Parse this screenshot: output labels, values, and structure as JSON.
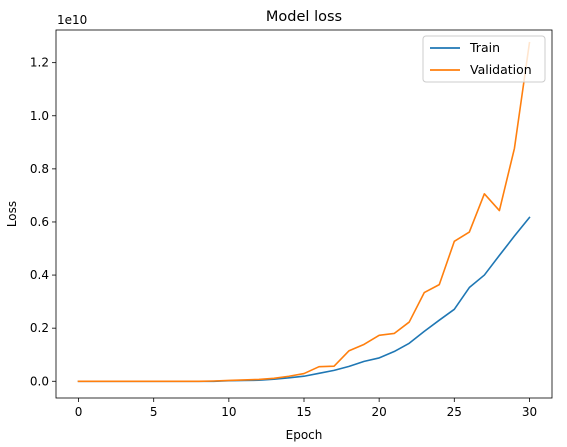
{
  "chart_data": {
    "type": "line",
    "title": "Model loss",
    "xlabel": "Epoch",
    "ylabel": "Loss",
    "y_multiplier_label": "1e10",
    "y_scale": 10000000000,
    "xlim": [
      -1.5,
      31.5
    ],
    "ylim": [
      -0.063,
      1.323
    ],
    "xticks": [
      0,
      5,
      10,
      15,
      20,
      25,
      30
    ],
    "yticks": [
      0.0,
      0.2,
      0.4,
      0.6,
      0.8,
      1.0,
      1.2
    ],
    "ytick_labels": [
      "0.0",
      "0.2",
      "0.4",
      "0.6",
      "0.8",
      "1.0",
      "1.2"
    ],
    "grid": false,
    "legend_position": "upper right",
    "x": [
      0,
      1,
      2,
      3,
      4,
      5,
      6,
      7,
      8,
      9,
      10,
      11,
      12,
      13,
      14,
      15,
      16,
      17,
      18,
      19,
      20,
      21,
      22,
      23,
      24,
      25,
      26,
      27,
      28,
      29,
      30
    ],
    "series": [
      {
        "name": "Train",
        "color": "#1f77b4",
        "values": [
          0.0,
          0.0,
          0.0,
          0.0,
          0.0,
          0.0,
          0.0,
          0.0,
          0.0,
          0.0,
          0.002,
          0.003,
          0.004,
          0.008,
          0.013,
          0.019,
          0.03,
          0.041,
          0.056,
          0.075,
          0.088,
          0.112,
          0.143,
          0.188,
          0.23,
          0.271,
          0.353,
          0.4,
          0.474,
          0.547,
          0.617
        ]
      },
      {
        "name": "Validation",
        "color": "#ff7f0e",
        "values": [
          0.0,
          0.0,
          0.0,
          0.0,
          0.0,
          0.0,
          0.0,
          0.0,
          0.0,
          0.001,
          0.003,
          0.005,
          0.007,
          0.011,
          0.019,
          0.029,
          0.055,
          0.057,
          0.115,
          0.139,
          0.173,
          0.18,
          0.223,
          0.334,
          0.364,
          0.527,
          0.562,
          0.706,
          0.643,
          0.877,
          1.275
        ]
      }
    ]
  }
}
